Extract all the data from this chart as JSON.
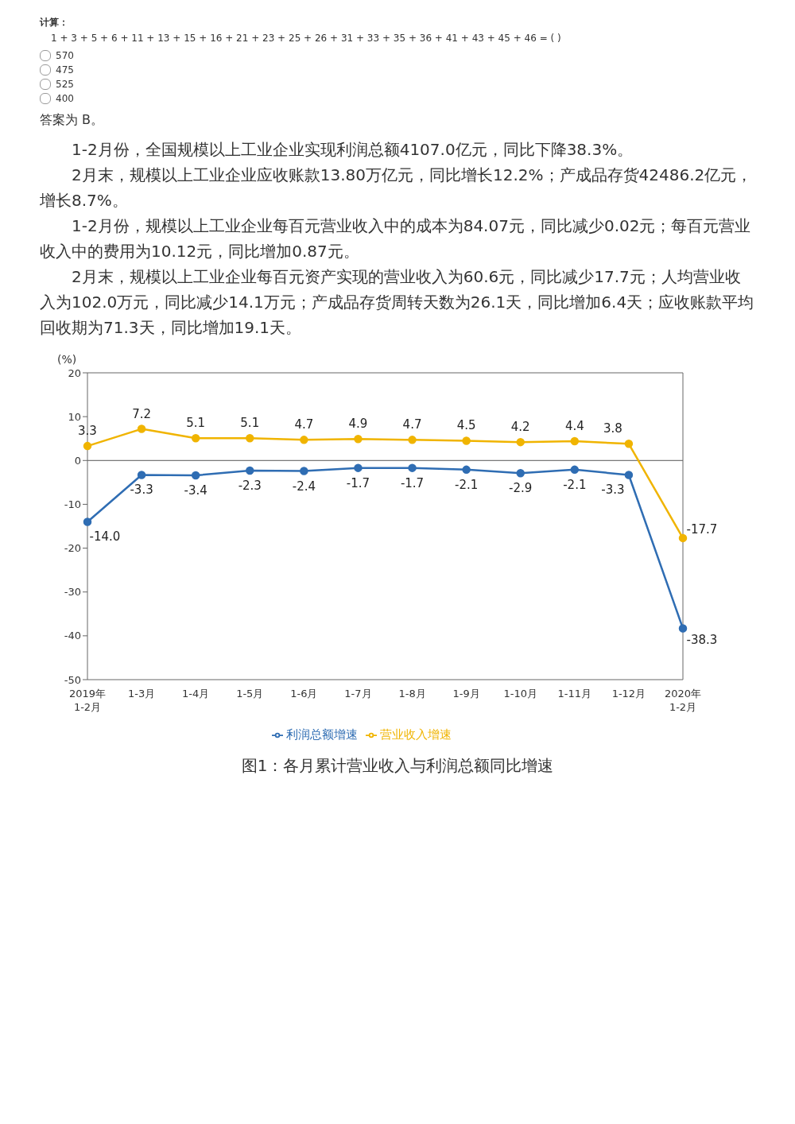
{
  "chart_data": {
    "type": "line",
    "title": "图1：各月累计营业收入与利润总额同比增速",
    "ylabel": "(%)",
    "annotations": [
      "计算：",
      "1 + 3 + 5 + 6 + 11 + 13 + 15 + 16 + 21 + 23 + 25 + 26 + 31 + 33 + 35 + 36 + 41 + 43 + 45 + 46 = (    )",
      "570",
      "475",
      "525",
      "400",
      "答案为 B。",
      "1-2月份，全国规模以上工业企业实现利润总额4107.0亿元，同比下降38.3%。",
      "2月末，规模以上工业企业应收账款13.80万亿元，同比增长12.2%；产成品存货42486.2亿元，增长8.7%。",
      "1-2月份，规模以上工业企业每百元营业收入中的成本为84.07元，同比减少0.02元；每百元营业收入中的费用为10.12元，同比增加0.87元。",
      "2月末，规模以上工业企业每百元资产实现的营业收入为60.6元，同比减少17.7元；人均营业收入为102.0万元，同比减少14.1万元；产成品存货周转天数为26.1天，同比增加6.4天；应收账款平均回收期为71.3天，同比增加19.1天。"
    ],
    "categories": [
      "2019年\n1-2月",
      "1-3月",
      "1-4月",
      "1-5月",
      "1-6月",
      "1-7月",
      "1-8月",
      "1-9月",
      "1-10月",
      "1-11月",
      "1-12月",
      "2020年\n1-2月"
    ],
    "series": [
      {
        "name": "营业收入增速",
        "color": "#f0b400",
        "values": [
          3.3,
          7.2,
          5.1,
          5.1,
          4.7,
          4.9,
          4.7,
          4.5,
          4.2,
          4.4,
          3.8,
          -17.7
        ],
        "value_labels": [
          "3.3",
          "7.2",
          "5.1",
          "5.1",
          "4.7",
          "4.9",
          "4.7",
          "4.5",
          "4.2",
          "4.4",
          "3.8",
          "-17.7"
        ]
      },
      {
        "name": "利润总额增速",
        "color": "#2f6db3",
        "values": [
          -14.0,
          -3.3,
          -3.4,
          -2.3,
          -2.4,
          -1.7,
          -1.7,
          -2.1,
          -2.9,
          -2.1,
          -3.3,
          -38.3
        ],
        "value_labels": [
          "-14.0",
          "-3.3",
          "-3.4",
          "-2.3",
          "-2.4",
          "-1.7",
          "-1.7",
          "-2.1",
          "-2.9",
          "-2.1",
          "-3.3",
          "-38.3"
        ]
      }
    ],
    "ylim": [
      -50,
      20
    ],
    "yticks": [
      -50,
      -40,
      -30,
      -20,
      -10,
      0,
      10,
      20
    ],
    "ref_lines": [
      {
        "axis": "y",
        "value": 0,
        "color": "#555555"
      }
    ],
    "legend": "bottom",
    "marker": "circle",
    "line_style": "solid"
  }
}
